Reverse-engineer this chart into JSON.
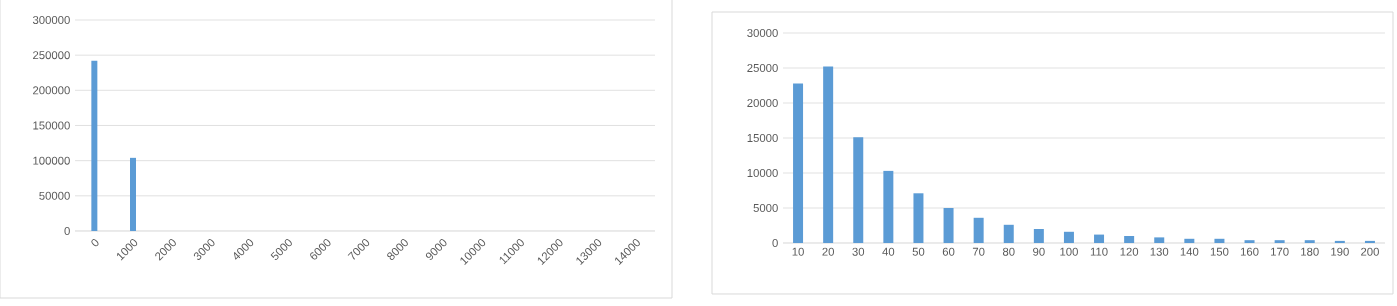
{
  "chart_data": [
    {
      "type": "bar",
      "categories": [
        "0",
        "1000",
        "2000",
        "3000",
        "4000",
        "5000",
        "6000",
        "7000",
        "8000",
        "9000",
        "10000",
        "11000",
        "12000",
        "13000",
        "14000"
      ],
      "values": [
        242000,
        104000,
        0,
        0,
        0,
        0,
        0,
        0,
        0,
        0,
        0,
        0,
        0,
        0,
        0
      ],
      "color": "#5b9bd5",
      "ylim": [
        0,
        300000
      ],
      "yticks": [
        0,
        50000,
        100000,
        150000,
        200000,
        250000,
        300000
      ],
      "grid": "y"
    },
    {
      "type": "bar",
      "categories": [
        "10",
        "20",
        "30",
        "40",
        "50",
        "60",
        "70",
        "80",
        "90",
        "100",
        "110",
        "120",
        "130",
        "140",
        "150",
        "160",
        "170",
        "180",
        "190",
        "200"
      ],
      "values": [
        22800,
        25200,
        15100,
        10300,
        7100,
        5000,
        3600,
        2600,
        2000,
        1600,
        1200,
        1000,
        800,
        600,
        600,
        400,
        400,
        400,
        300,
        300
      ],
      "color": "#5b9bd5",
      "ylim": [
        0,
        30000
      ],
      "yticks": [
        0,
        5000,
        10000,
        15000,
        20000,
        25000,
        30000
      ],
      "grid": "y"
    }
  ]
}
